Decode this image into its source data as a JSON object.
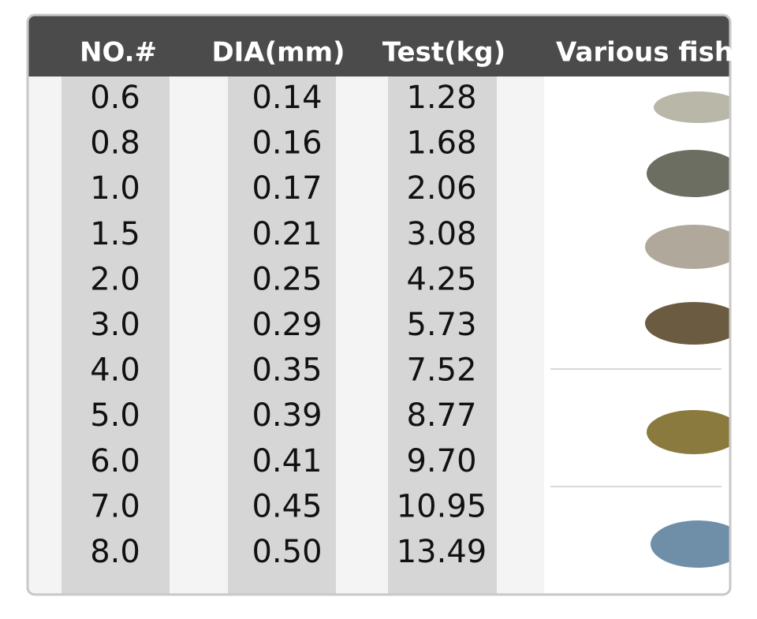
{
  "table": {
    "header": [
      "NO.#",
      "DIA(mm)",
      "Test(kg)",
      "Various fish"
    ],
    "rows": [
      [
        "0.6",
        "0.14",
        "1.28"
      ],
      [
        "0.8",
        "0.16",
        "1.68"
      ],
      [
        "1.0",
        "0.17",
        "2.06"
      ],
      [
        "1.5",
        "0.21",
        "3.08"
      ],
      [
        "2.0",
        "0.25",
        "4.25"
      ],
      [
        "3.0",
        "0.29",
        "5.73"
      ],
      [
        "4.0",
        "0.35",
        "7.52"
      ],
      [
        "5.0",
        "0.39",
        "8.77"
      ],
      [
        "6.0",
        "0.41",
        "9.70"
      ],
      [
        "7.0",
        "0.45",
        "10.95"
      ],
      [
        "8.0",
        "0.50",
        "13.49"
      ]
    ]
  }
}
